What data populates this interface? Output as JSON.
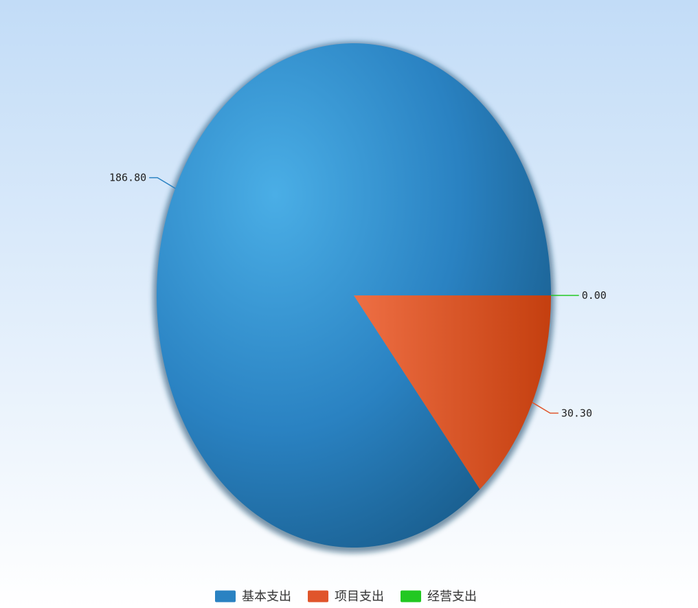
{
  "chart_data": {
    "type": "pie",
    "title": "",
    "series": [
      {
        "name": "基本支出",
        "value": 186.8,
        "label": "186.80",
        "color": "#2a82c2"
      },
      {
        "name": "项目支出",
        "value": 30.3,
        "label": "30.30",
        "color": "#e0552b"
      },
      {
        "name": "经营支出",
        "value": 0.0,
        "label": "0.00",
        "color": "#22c822"
      }
    ],
    "legend_position": "bottom-center",
    "background_gradient": [
      "#c2dcf7",
      "#ffffff"
    ],
    "start_angle_deg": 0,
    "direction": "counterclockwise"
  }
}
